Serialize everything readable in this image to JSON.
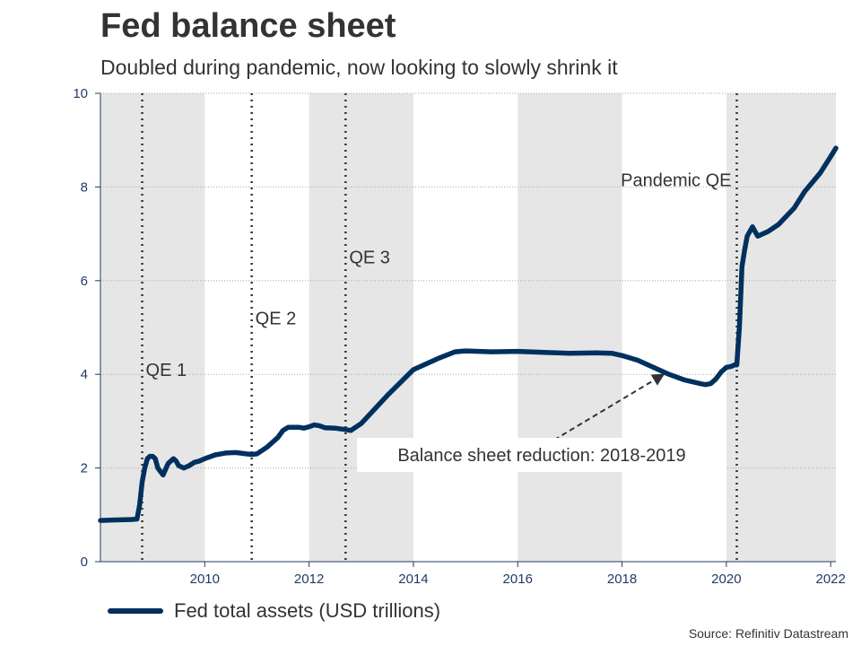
{
  "header": {
    "title": "Fed balance sheet",
    "subtitle": "Doubled during pandemic, now looking to slowly shrink it"
  },
  "source": "Source: Refinitiv Datastream",
  "colors": {
    "line": "#00305e",
    "band": "#e6e6e6",
    "grid": "#aaaaaa",
    "tick": "#223a66"
  },
  "chart_data": {
    "type": "line",
    "title": "Fed balance sheet",
    "subtitle": "Doubled during pandemic, now looking to slowly shrink it",
    "xlabel": "",
    "ylabel": "",
    "xlim": [
      2008.0,
      2022.1
    ],
    "ylim": [
      0,
      10
    ],
    "x_ticks": [
      2010,
      2012,
      2014,
      2016,
      2018,
      2020,
      2022
    ],
    "y_ticks": [
      0,
      2,
      4,
      6,
      8,
      10
    ],
    "grid": "horizontal dotted",
    "legend_position": "bottom-left",
    "shaded_years": [
      [
        2008,
        2010
      ],
      [
        2012,
        2014
      ],
      [
        2016,
        2018
      ],
      [
        2020,
        2022.1
      ]
    ],
    "series": [
      {
        "name": "Fed total assets (USD trillions)",
        "x": [
          2008.0,
          2008.3,
          2008.6,
          2008.7,
          2008.75,
          2008.8,
          2008.85,
          2008.9,
          2008.95,
          2009.0,
          2009.05,
          2009.1,
          2009.2,
          2009.3,
          2009.4,
          2009.45,
          2009.5,
          2009.6,
          2009.7,
          2009.8,
          2009.9,
          2010.0,
          2010.2,
          2010.4,
          2010.6,
          2010.8,
          2010.9,
          2011.0,
          2011.2,
          2011.4,
          2011.5,
          2011.6,
          2011.8,
          2011.9,
          2012.0,
          2012.1,
          2012.2,
          2012.3,
          2012.5,
          2012.7,
          2012.8,
          2013.0,
          2013.5,
          2014.0,
          2014.5,
          2014.8,
          2015.0,
          2015.5,
          2016.0,
          2016.5,
          2017.0,
          2017.5,
          2017.8,
          2018.0,
          2018.3,
          2018.6,
          2018.9,
          2019.2,
          2019.5,
          2019.6,
          2019.7,
          2019.8,
          2019.9,
          2020.0,
          2020.1,
          2020.15,
          2020.2,
          2020.25,
          2020.3,
          2020.35,
          2020.4,
          2020.5,
          2020.6,
          2020.8,
          2021.0,
          2021.3,
          2021.5,
          2021.8,
          2022.0,
          2022.1
        ],
        "values": [
          0.88,
          0.89,
          0.9,
          0.91,
          1.2,
          1.7,
          2.0,
          2.2,
          2.25,
          2.25,
          2.2,
          2.0,
          1.85,
          2.1,
          2.2,
          2.15,
          2.05,
          2.0,
          2.05,
          2.12,
          2.15,
          2.2,
          2.28,
          2.32,
          2.33,
          2.3,
          2.29,
          2.3,
          2.45,
          2.65,
          2.8,
          2.87,
          2.87,
          2.85,
          2.88,
          2.92,
          2.9,
          2.86,
          2.85,
          2.82,
          2.8,
          2.95,
          3.55,
          4.1,
          4.35,
          4.48,
          4.5,
          4.48,
          4.49,
          4.47,
          4.45,
          4.46,
          4.45,
          4.4,
          4.3,
          4.15,
          4.0,
          3.88,
          3.8,
          3.78,
          3.8,
          3.9,
          4.05,
          4.15,
          4.17,
          4.2,
          4.2,
          5.0,
          6.3,
          6.65,
          6.95,
          7.15,
          6.95,
          7.05,
          7.2,
          7.55,
          7.9,
          8.3,
          8.65,
          8.83
        ]
      }
    ],
    "vlines": [
      {
        "x": 2008.8,
        "label": "QE 1"
      },
      {
        "x": 2010.9,
        "label": "QE 2"
      },
      {
        "x": 2012.7,
        "label": "QE 3"
      },
      {
        "x": 2020.2,
        "label": "Pandemic QE"
      }
    ],
    "annotations": [
      {
        "text": "Balance sheet reduction: 2018-2019",
        "arrow_to": [
          2018.8,
          4.0
        ],
        "arrow_from": [
          2016.7,
          2.6
        ]
      }
    ]
  }
}
